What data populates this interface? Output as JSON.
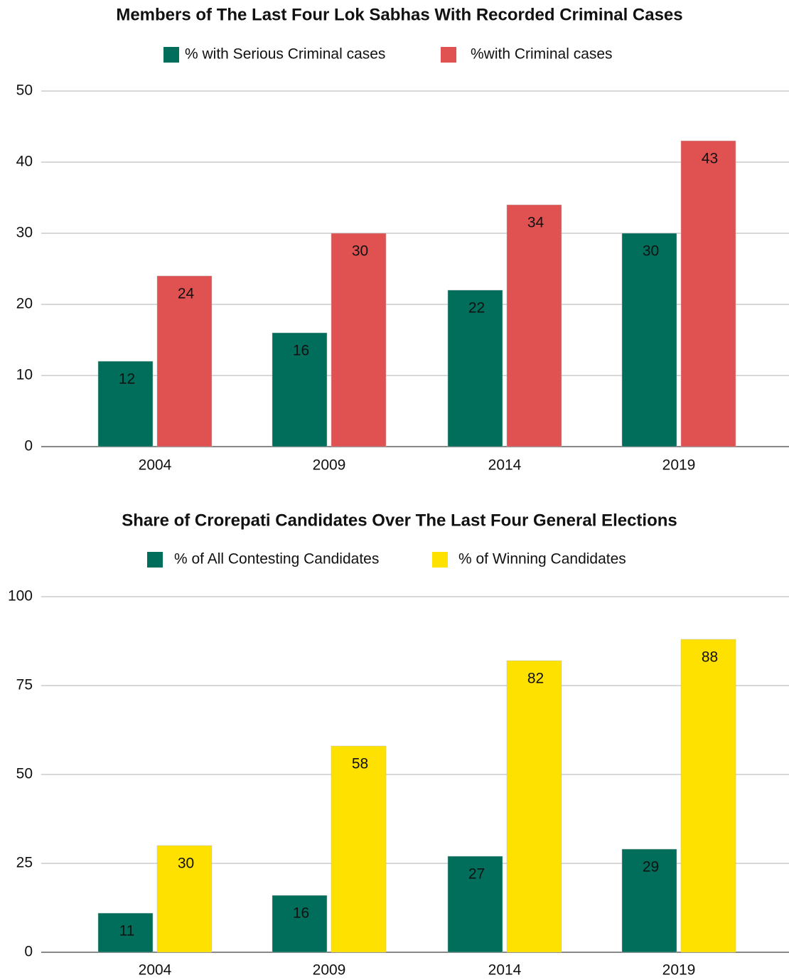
{
  "chart_data": [
    {
      "type": "bar",
      "title": "Members of The Last Four Lok Sabhas With Recorded Criminal Cases",
      "categories": [
        "2004",
        "2009",
        "2014",
        "2019"
      ],
      "series": [
        {
          "name": "% with Serious Criminal cases",
          "color": "#006e5a",
          "values": [
            12,
            16,
            22,
            30
          ]
        },
        {
          "name": "%with Criminal cases",
          "color": "#e05252",
          "values": [
            24,
            30,
            34,
            43
          ]
        }
      ],
      "ylim": [
        0,
        50
      ],
      "yticks": [
        0,
        10,
        20,
        30,
        40,
        50
      ],
      "grid": true,
      "legend": "top"
    },
    {
      "type": "bar",
      "title": "Share of Crorepati Candidates Over The Last Four General Elections",
      "categories": [
        "2004",
        "2009",
        "2014",
        "2019"
      ],
      "series": [
        {
          "name": "% of All Contesting Candidates",
          "color": "#006e5a",
          "values": [
            11,
            16,
            27,
            29
          ]
        },
        {
          "name": "% of Winning Candidates",
          "color": "#ffe100",
          "values": [
            30,
            58,
            82,
            88
          ]
        }
      ],
      "ylim": [
        0,
        100
      ],
      "yticks": [
        0,
        25,
        50,
        75,
        100
      ],
      "grid": true,
      "legend": "top"
    }
  ]
}
